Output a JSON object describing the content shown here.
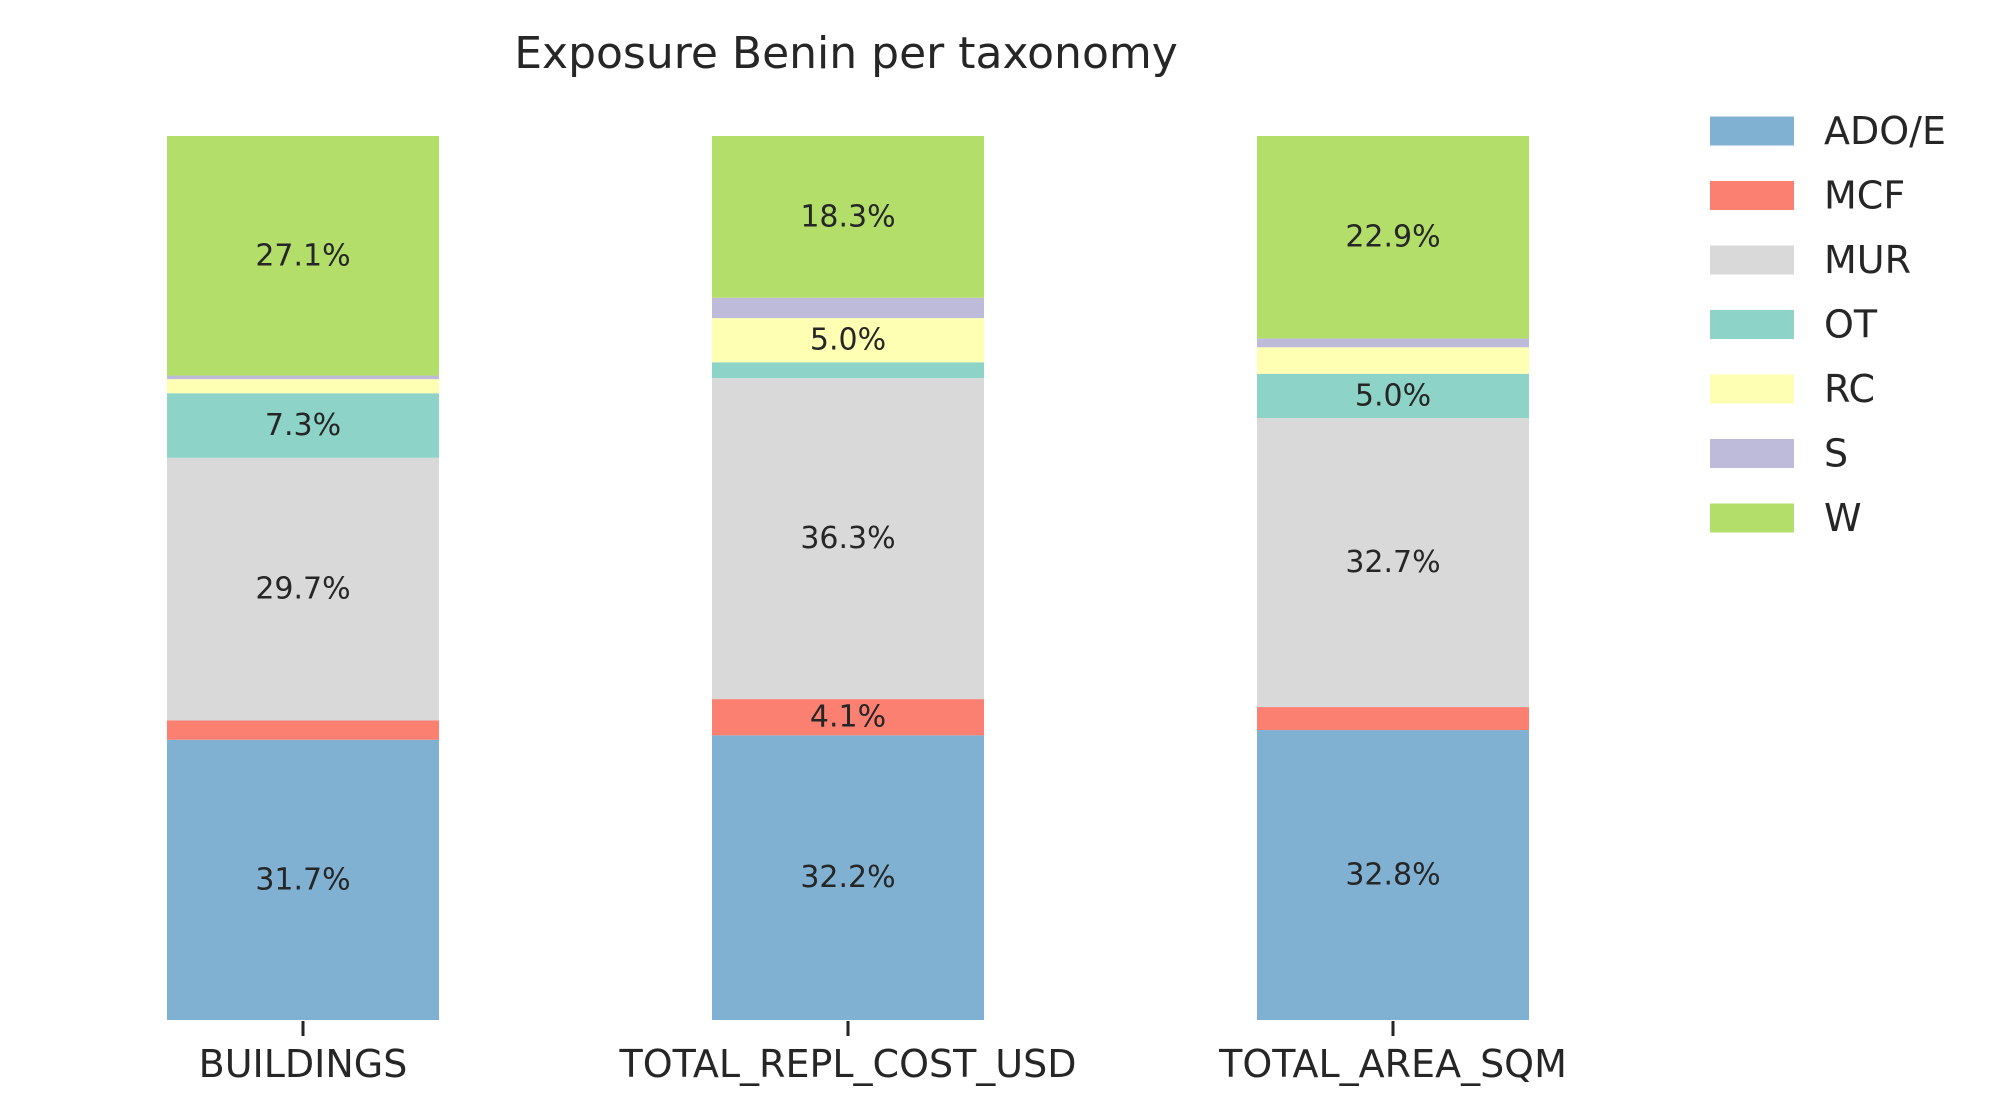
{
  "chart_data": {
    "type": "bar",
    "stacked": true,
    "normalized_percent": true,
    "title": "Exposure Benin per taxonomy",
    "xlabel": "",
    "ylabel": "",
    "ylim": [
      0,
      100
    ],
    "grid": false,
    "legend_position": "top-right",
    "categories": [
      "BUILDINGS",
      "TOTAL_REPL_COST_USD",
      "TOTAL_AREA_SQM"
    ],
    "series": [
      {
        "name": "ADO/E",
        "color": "#80b1d3",
        "values": [
          31.7,
          32.2,
          32.8
        ],
        "labels": [
          "31.7%",
          "32.2%",
          "32.8%"
        ]
      },
      {
        "name": "MCF",
        "color": "#fb8072",
        "values": [
          2.2,
          4.1,
          2.6
        ],
        "labels": [
          "",
          "4.1%",
          ""
        ]
      },
      {
        "name": "MUR",
        "color": "#d9d9d9",
        "values": [
          29.7,
          36.3,
          32.7
        ],
        "labels": [
          "29.7%",
          "36.3%",
          "32.7%"
        ]
      },
      {
        "name": "OT",
        "color": "#8dd3c7",
        "values": [
          7.3,
          1.8,
          5.0
        ],
        "labels": [
          "7.3%",
          "",
          "5.0%"
        ]
      },
      {
        "name": "RC",
        "color": "#ffffb3",
        "values": [
          1.6,
          5.0,
          3.0
        ],
        "labels": [
          "",
          "5.0%",
          ""
        ]
      },
      {
        "name": "S",
        "color": "#bebada",
        "values": [
          0.4,
          2.3,
          1.0
        ],
        "labels": [
          "",
          "",
          ""
        ]
      },
      {
        "name": "W",
        "color": "#b3de69",
        "values": [
          27.1,
          18.3,
          22.9
        ],
        "labels": [
          "27.1%",
          "18.3%",
          "22.9%"
        ]
      }
    ]
  }
}
